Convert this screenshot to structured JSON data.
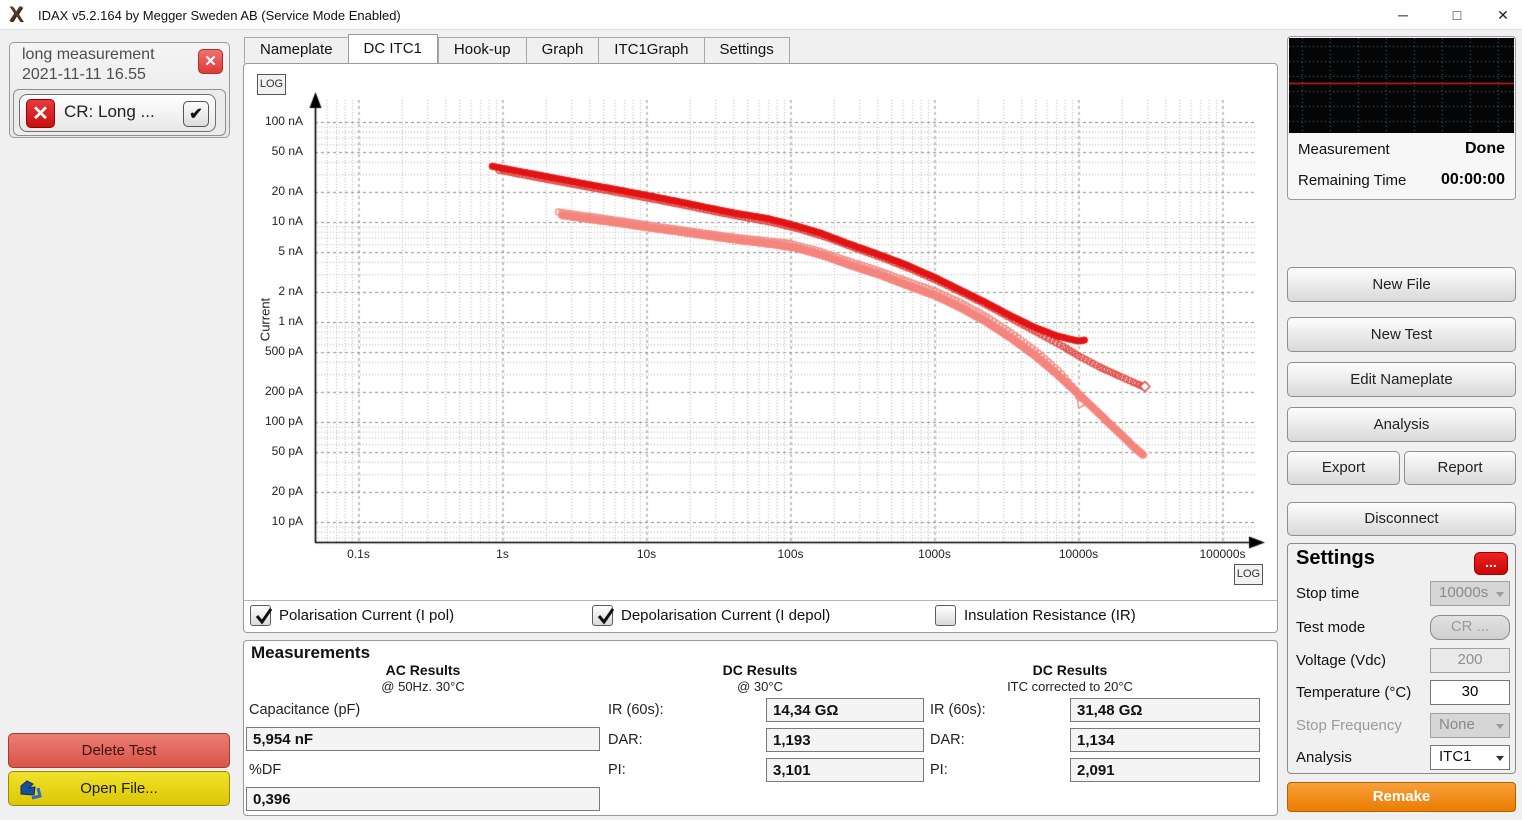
{
  "icons": {
    "minimize": "─",
    "maximize": "□",
    "close": "✕",
    "check": "✔",
    "x_mark": "✕",
    "more": "...",
    "logo": "X"
  },
  "title_bar": {
    "title": "IDAX v5.2.164 by Megger Sweden AB (Service Mode Enabled)"
  },
  "tabs": [
    "Nameplate",
    "DC ITC1",
    "Hook-up",
    "Graph",
    "ITC1Graph",
    "Settings"
  ],
  "active_tab": "DC ITC1",
  "sidebar": {
    "measurement_name": "long measurement",
    "measurement_date": "2021-11-11 16.55",
    "test_item_label": "CR: Long ...",
    "test_item_checked": true,
    "delete_button": "Delete Test",
    "open_button": "Open File..."
  },
  "chart": {
    "log_button": "LOG",
    "ylabel": "Current"
  },
  "chart_data": {
    "type": "scatter",
    "x_scale": "log",
    "y_scale": "log",
    "ylabel": "Current",
    "x_ticks": [
      {
        "label": "0.1s",
        "t": 0.1
      },
      {
        "label": "1s",
        "t": 1
      },
      {
        "label": "10s",
        "t": 10
      },
      {
        "label": "100s",
        "t": 100
      },
      {
        "label": "1000s",
        "t": 1000
      },
      {
        "label": "10000s",
        "t": 10000
      },
      {
        "label": "100000s",
        "t": 100000
      }
    ],
    "y_ticks": [
      {
        "label": "100 nA",
        "nA": 100
      },
      {
        "label": "50 nA",
        "nA": 50
      },
      {
        "label": "20 nA",
        "nA": 20
      },
      {
        "label": "10 nA",
        "nA": 10
      },
      {
        "label": "5 nA",
        "nA": 5
      },
      {
        "label": "2 nA",
        "nA": 2
      },
      {
        "label": "1 nA",
        "nA": 1
      },
      {
        "label": "500 pA",
        "nA": 0.5
      },
      {
        "label": "200 pA",
        "nA": 0.2
      },
      {
        "label": "100 pA",
        "nA": 0.1
      },
      {
        "label": "50 pA",
        "nA": 0.05
      },
      {
        "label": "20 pA",
        "nA": 0.02
      },
      {
        "label": "10 pA",
        "nA": 0.01
      }
    ],
    "x_range_s": [
      0.05,
      180000
    ],
    "y_range_nA": [
      0.0063,
      186
    ],
    "series": [
      {
        "name": "Depolarisation Current (I depol) - hollow markers",
        "marker": "hollow-circle",
        "color": "#ee8d86",
        "radius": 3.0,
        "end_marker": "triangle",
        "points": [
          [
            2.45,
            12.6
          ],
          [
            4,
            11.4
          ],
          [
            6.5,
            10.3
          ],
          [
            10,
            9.4
          ],
          [
            16,
            8.5
          ],
          [
            26,
            7.7
          ],
          [
            42,
            7.0
          ],
          [
            68,
            6.5
          ],
          [
            100,
            6.1
          ],
          [
            160,
            5.1
          ],
          [
            250,
            4.1
          ],
          [
            400,
            3.3
          ],
          [
            630,
            2.6
          ],
          [
            1000,
            2.05
          ],
          [
            1500,
            1.58
          ],
          [
            2300,
            1.13
          ],
          [
            3400,
            0.78
          ],
          [
            5000,
            0.52
          ],
          [
            7200,
            0.33
          ],
          [
            9500,
            0.21
          ],
          [
            10500,
            0.155
          ]
        ]
      },
      {
        "name": "Depolarisation Current (I depol) - solid markers",
        "marker": "filled-circle",
        "color": "#f4857d",
        "radius": 4.0,
        "points": [
          [
            2.6,
            11.7
          ],
          [
            4.2,
            10.6
          ],
          [
            7,
            9.6
          ],
          [
            11,
            8.7
          ],
          [
            18,
            7.9
          ],
          [
            29,
            7.15
          ],
          [
            47,
            6.5
          ],
          [
            75,
            6.0
          ],
          [
            110,
            5.5
          ],
          [
            170,
            4.6
          ],
          [
            260,
            3.7
          ],
          [
            420,
            2.95
          ],
          [
            660,
            2.3
          ],
          [
            1000,
            1.85
          ],
          [
            1500,
            1.4
          ],
          [
            2300,
            1.0
          ],
          [
            3400,
            0.69
          ],
          [
            5000,
            0.46
          ],
          [
            7200,
            0.295
          ],
          [
            10000,
            0.19
          ],
          [
            14000,
            0.12
          ],
          [
            19000,
            0.079
          ],
          [
            24000,
            0.057
          ],
          [
            28000,
            0.047
          ]
        ]
      },
      {
        "name": "Polarisation Current (I pol) - hollow markers",
        "marker": "hollow-circle",
        "color": "#e04a45",
        "radius": 3.0,
        "end_marker": "diamond",
        "points": [
          [
            0.95,
            33
          ],
          [
            1.6,
            28.5
          ],
          [
            2.6,
            25
          ],
          [
            4.2,
            22
          ],
          [
            7,
            19.2
          ],
          [
            11,
            17
          ],
          [
            18,
            14.8
          ],
          [
            29,
            12.8
          ],
          [
            47,
            11.2
          ],
          [
            75,
            9.9
          ],
          [
            115,
            8.5
          ],
          [
            180,
            7.0
          ],
          [
            280,
            5.5
          ],
          [
            450,
            4.3
          ],
          [
            700,
            3.35
          ],
          [
            1100,
            2.5
          ],
          [
            1700,
            1.85
          ],
          [
            2600,
            1.35
          ],
          [
            3800,
            1.0
          ],
          [
            5500,
            0.75
          ],
          [
            7800,
            0.57
          ],
          [
            10000,
            0.46
          ],
          [
            14000,
            0.355
          ],
          [
            19000,
            0.29
          ],
          [
            24000,
            0.25
          ],
          [
            28000,
            0.227
          ]
        ]
      },
      {
        "name": "Polarisation Current (I pol) - solid markers",
        "marker": "filled-circle",
        "color": "#e31414",
        "radius": 3.5,
        "points": [
          [
            0.85,
            36
          ],
          [
            1.4,
            31.5
          ],
          [
            2.3,
            27.5
          ],
          [
            3.8,
            24
          ],
          [
            6.3,
            21
          ],
          [
            10,
            18.5
          ],
          [
            16,
            16.2
          ],
          [
            26,
            14
          ],
          [
            42,
            12.2
          ],
          [
            68,
            10.9
          ],
          [
            100,
            9.5
          ],
          [
            160,
            7.8
          ],
          [
            250,
            6.1
          ],
          [
            400,
            4.8
          ],
          [
            630,
            3.75
          ],
          [
            1000,
            2.8
          ],
          [
            1500,
            2.1
          ],
          [
            2300,
            1.55
          ],
          [
            3400,
            1.15
          ],
          [
            5000,
            0.88
          ],
          [
            7200,
            0.72
          ],
          [
            10000,
            0.645
          ],
          [
            11000,
            0.66
          ]
        ]
      }
    ],
    "grid": {
      "style": "dashed log-log",
      "major_color": "#8a8a8a",
      "minor_color": "#b2b2b2"
    }
  },
  "checkboxes": [
    {
      "label": "Polarisation Current (I pol)",
      "checked": true
    },
    {
      "label": "Depolarisation Current (I depol)",
      "checked": true
    },
    {
      "label": "Insulation Resistance (IR)",
      "checked": false
    }
  ],
  "measurements": {
    "title": "Measurements",
    "ac": {
      "header": "AC Results",
      "subheader": "@ 50Hz. 30°C",
      "fields": [
        {
          "label": "Capacitance (pF)",
          "value": "5,954 nF"
        },
        {
          "label": "%DF",
          "value": "0,396"
        }
      ]
    },
    "dc30": {
      "header": "DC Results",
      "subheader": "@ 30°C",
      "rows": [
        {
          "label": "IR (60s):",
          "value": "14,34 GΩ"
        },
        {
          "label": "DAR:",
          "value": "1,193"
        },
        {
          "label": "PI:",
          "value": "3,101"
        }
      ]
    },
    "dc20": {
      "header": "DC Results",
      "subheader": "ITC corrected to 20°C",
      "rows": [
        {
          "label": "IR (60s):",
          "value": "31,48 GΩ"
        },
        {
          "label": "DAR:",
          "value": "1,134"
        },
        {
          "label": "PI:",
          "value": "2,091"
        }
      ]
    }
  },
  "right_panel": {
    "status": {
      "measurement_label": "Measurement",
      "measurement_value": "Done",
      "remaining_label": "Remaining Time",
      "remaining_value": "00:00:00"
    },
    "buttons": {
      "new_file": "New File",
      "new_test": "New Test",
      "edit_nameplate": "Edit Nameplate",
      "analysis": "Analysis",
      "export": "Export",
      "report": "Report",
      "disconnect": "Disconnect"
    },
    "settings": {
      "title": "Settings",
      "rows": [
        {
          "label": "Stop time",
          "value": "10000s",
          "disabled": true
        },
        {
          "label": "Test mode",
          "value": "CR ...",
          "disabled": true
        },
        {
          "label": "Voltage (Vdc)",
          "value": "200",
          "disabled": true
        },
        {
          "label": "Temperature (°C)",
          "value": "30",
          "disabled": false
        },
        {
          "label": "Stop Frequency",
          "value": "None",
          "disabled": true
        },
        {
          "label": "Analysis",
          "value": "ITC1",
          "disabled": false
        }
      ]
    },
    "remake_button": "Remake"
  }
}
